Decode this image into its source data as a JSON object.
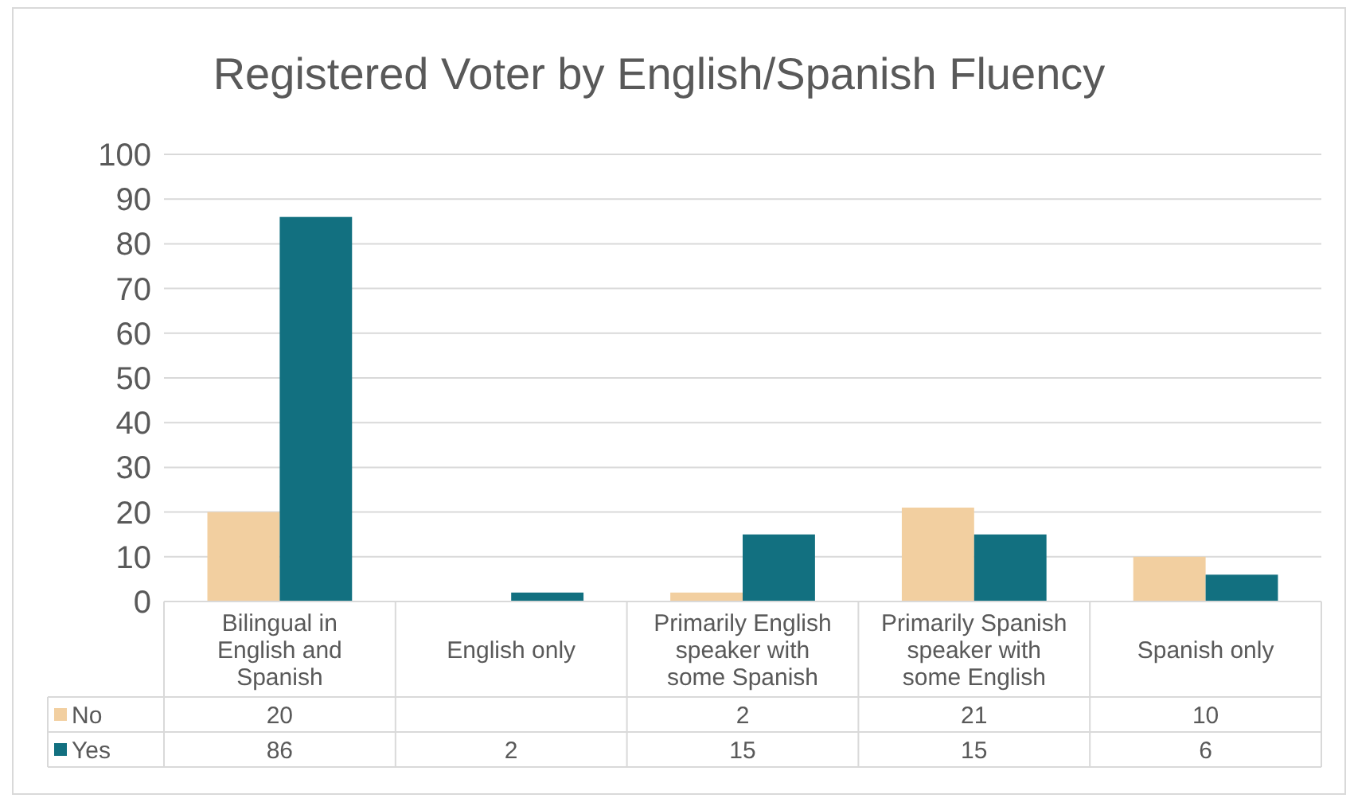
{
  "chart_data": {
    "type": "bar",
    "title": "Registered Voter by English/Spanish Fluency",
    "categories": [
      "Bilingual in English and Spanish",
      "English only",
      "Primarily English speaker with some Spanish",
      "Primarily Spanish speaker with some English",
      "Spanish only"
    ],
    "series": [
      {
        "name": "No",
        "color": "#f2cfa0",
        "values": [
          20,
          null,
          2,
          21,
          10
        ]
      },
      {
        "name": "Yes",
        "color": "#127080",
        "values": [
          86,
          2,
          15,
          15,
          6
        ]
      }
    ],
    "ylim": [
      0,
      100
    ],
    "yticks": [
      0,
      10,
      20,
      30,
      40,
      50,
      60,
      70,
      80,
      90,
      100
    ],
    "grid": "y",
    "data_labels": true,
    "legend": "bottom"
  }
}
